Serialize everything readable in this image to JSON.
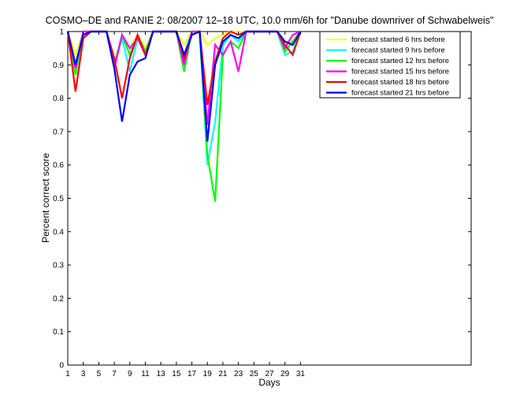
{
  "chart_data": {
    "type": "line",
    "title": "COSMO–DE and RANIE 2: 08/2007 12–18 UTC, 10.0 mm/6h for \"Danube downriver of Schwabelweis\"",
    "xlabel": "Days",
    "ylabel": "Percent correct score",
    "xlim": [
      1,
      53
    ],
    "ylim": [
      0,
      1
    ],
    "x_ticks": [
      1,
      3,
      5,
      7,
      9,
      11,
      13,
      15,
      17,
      19,
      21,
      23,
      25,
      27,
      29,
      31
    ],
    "x_tick_labels": [
      "1",
      "3",
      "5",
      "7",
      "9",
      "11",
      "13",
      "15",
      "17",
      "19",
      "21",
      "23",
      "25",
      "27",
      "29",
      "31"
    ],
    "y_ticks": [
      0,
      0.1,
      0.2,
      0.3,
      0.4,
      0.5,
      0.6,
      0.7,
      0.8,
      0.9,
      1
    ],
    "y_tick_labels": [
      "0",
      "0.1",
      "0.2",
      "0.3",
      "0.4",
      "0.5",
      "0.6",
      "0.7",
      "0.8",
      "0.9",
      "1"
    ],
    "grid": false,
    "legend_position": "top-right",
    "x": [
      1,
      2,
      3,
      4,
      5,
      6,
      7,
      8,
      9,
      10,
      11,
      12,
      13,
      14,
      15,
      16,
      17,
      18,
      19,
      20,
      21,
      22,
      23,
      24,
      25,
      26,
      27,
      28,
      29,
      30,
      31
    ],
    "series": [
      {
        "name": "forecast started 6 hrs before",
        "color": "#ffff00",
        "values": [
          1,
          0.93,
          1,
          1,
          1,
          1,
          0.91,
          0.98,
          0.95,
          0.99,
          0.95,
          1,
          1,
          1,
          1,
          0.96,
          1,
          1,
          0.96,
          0.98,
          0.99,
          1,
          1,
          1,
          1,
          1,
          1,
          1,
          0.97,
          0.97,
          1
        ]
      },
      {
        "name": "forecast started 9 hrs before",
        "color": "#00ffff",
        "values": [
          1,
          0.9,
          1,
          1,
          1,
          1,
          0.9,
          0.98,
          0.88,
          0.98,
          0.94,
          1,
          1,
          1,
          1,
          0.93,
          1,
          1,
          0.6,
          0.73,
          0.96,
          0.99,
          0.97,
          1,
          1,
          1,
          1,
          1,
          0.93,
          0.94,
          1
        ]
      },
      {
        "name": "forecast started 12 hrs before",
        "color": "#00ff00",
        "values": [
          1,
          0.87,
          1,
          1,
          1,
          1,
          0.9,
          0.99,
          0.93,
          0.99,
          0.94,
          1,
          1,
          1,
          1,
          0.88,
          1,
          1,
          0.63,
          0.49,
          0.93,
          0.97,
          0.95,
          1,
          1,
          1,
          1,
          1,
          0.94,
          0.97,
          1
        ]
      },
      {
        "name": "forecast started 15 hrs before",
        "color": "#ff00ff",
        "values": [
          1,
          0.89,
          1,
          1,
          1,
          1,
          0.89,
          0.99,
          0.95,
          0.98,
          0.93,
          1,
          1,
          1,
          1,
          0.9,
          1,
          1,
          0.72,
          0.96,
          0.93,
          0.97,
          0.88,
          1,
          1,
          1,
          1,
          1,
          0.95,
          0.99,
          1
        ]
      },
      {
        "name": "forecast started 18 hrs before",
        "color": "#ff0000",
        "values": [
          1,
          0.82,
          0.98,
          1,
          1,
          1,
          0.92,
          0.8,
          0.92,
          0.99,
          0.93,
          1,
          1,
          1,
          1,
          0.92,
          0.99,
          1,
          0.78,
          0.91,
          0.98,
          1,
          0.99,
          1,
          1,
          1,
          1,
          1,
          0.96,
          0.93,
          1
        ]
      },
      {
        "name": "forecast started 21 hrs before",
        "color": "#0000ff",
        "values": [
          1,
          0.9,
          0.99,
          1,
          1,
          1,
          0.89,
          0.73,
          0.87,
          0.91,
          0.92,
          1,
          1,
          1,
          1,
          0.93,
          0.99,
          1,
          0.67,
          0.9,
          0.97,
          0.99,
          0.98,
          1,
          1,
          1,
          1,
          1,
          0.97,
          0.96,
          1
        ]
      }
    ]
  }
}
